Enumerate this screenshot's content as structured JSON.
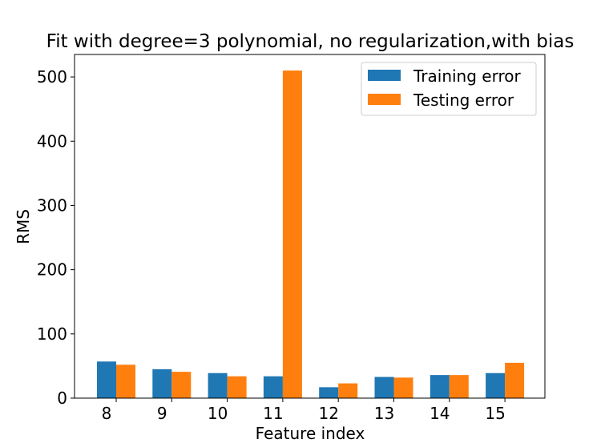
{
  "chart_data": {
    "type": "bar",
    "title": "Fit with degree=3 polynomial, no regularization,with bias",
    "xlabel": "Feature index",
    "ylabel": "RMS",
    "categories": [
      "8",
      "9",
      "10",
      "11",
      "12",
      "13",
      "14",
      "15"
    ],
    "series": [
      {
        "name": "Training error",
        "color": "#1f77b4",
        "values": [
          57,
          45,
          39,
          34,
          17,
          33,
          36,
          39
        ]
      },
      {
        "name": "Testing error",
        "color": "#ff7f0e",
        "values": [
          52,
          41,
          34,
          510,
          23,
          32,
          36,
          55
        ]
      }
    ],
    "yticks": [
      0,
      100,
      200,
      300,
      400,
      500
    ],
    "ylim": [
      0,
      535
    ],
    "legend": {
      "position": "top-right"
    },
    "grid": false
  }
}
